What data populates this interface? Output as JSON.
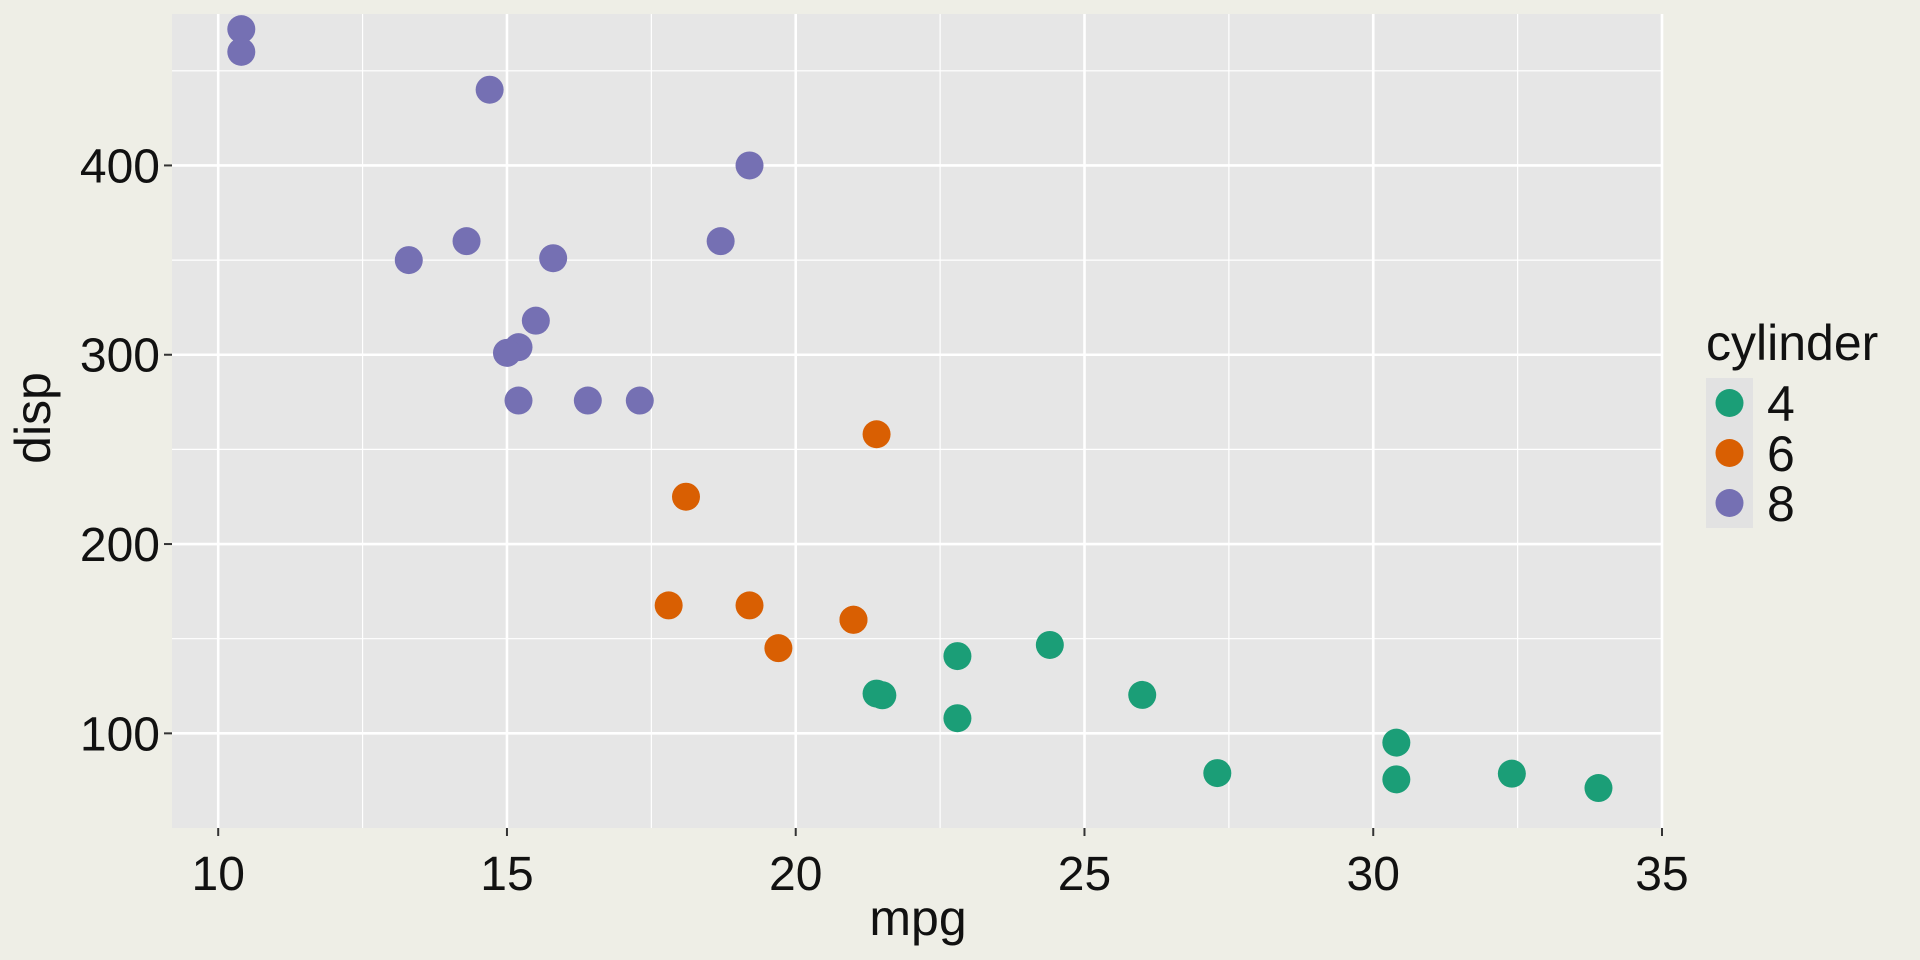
{
  "chart_data": {
    "type": "scatter",
    "title": "",
    "xlabel": "mpg",
    "ylabel": "disp",
    "xlim": [
      9.2,
      35.0
    ],
    "ylim": [
      50,
      480
    ],
    "x_ticks": [
      10,
      15,
      20,
      25,
      30,
      35
    ],
    "y_ticks": [
      100,
      200,
      300,
      400
    ],
    "grid": true,
    "panel_background": "#E6E6E6",
    "page_background": "#EEEEE6",
    "grid_color": "#FFFFFF",
    "legend": {
      "title": "cylinder",
      "position": "right",
      "background": "#E2E2E2"
    },
    "series": [
      {
        "name": "4",
        "color": "#1B9E77",
        "points": [
          {
            "x": 22.8,
            "y": 108
          },
          {
            "x": 24.4,
            "y": 146.7
          },
          {
            "x": 22.8,
            "y": 140.8
          },
          {
            "x": 32.4,
            "y": 78.7
          },
          {
            "x": 30.4,
            "y": 75.7
          },
          {
            "x": 33.9,
            "y": 71.1
          },
          {
            "x": 21.5,
            "y": 120.1
          },
          {
            "x": 27.3,
            "y": 79
          },
          {
            "x": 26.0,
            "y": 120.3
          },
          {
            "x": 30.4,
            "y": 95.1
          },
          {
            "x": 21.4,
            "y": 121
          }
        ]
      },
      {
        "name": "6",
        "color": "#D95F02",
        "points": [
          {
            "x": 21.0,
            "y": 160
          },
          {
            "x": 21.0,
            "y": 160
          },
          {
            "x": 21.4,
            "y": 258
          },
          {
            "x": 18.1,
            "y": 225
          },
          {
            "x": 19.2,
            "y": 167.6
          },
          {
            "x": 17.8,
            "y": 167.6
          },
          {
            "x": 19.7,
            "y": 145
          }
        ]
      },
      {
        "name": "8",
        "color": "#7570B3",
        "points": [
          {
            "x": 18.7,
            "y": 360
          },
          {
            "x": 14.3,
            "y": 360
          },
          {
            "x": 16.4,
            "y": 275.8
          },
          {
            "x": 17.3,
            "y": 275.8
          },
          {
            "x": 15.2,
            "y": 275.8
          },
          {
            "x": 10.4,
            "y": 472
          },
          {
            "x": 10.4,
            "y": 460
          },
          {
            "x": 14.7,
            "y": 440
          },
          {
            "x": 15.5,
            "y": 318
          },
          {
            "x": 15.2,
            "y": 304
          },
          {
            "x": 13.3,
            "y": 350
          },
          {
            "x": 19.2,
            "y": 400
          },
          {
            "x": 15.8,
            "y": 351
          },
          {
            "x": 15.0,
            "y": 301
          }
        ]
      }
    ]
  }
}
